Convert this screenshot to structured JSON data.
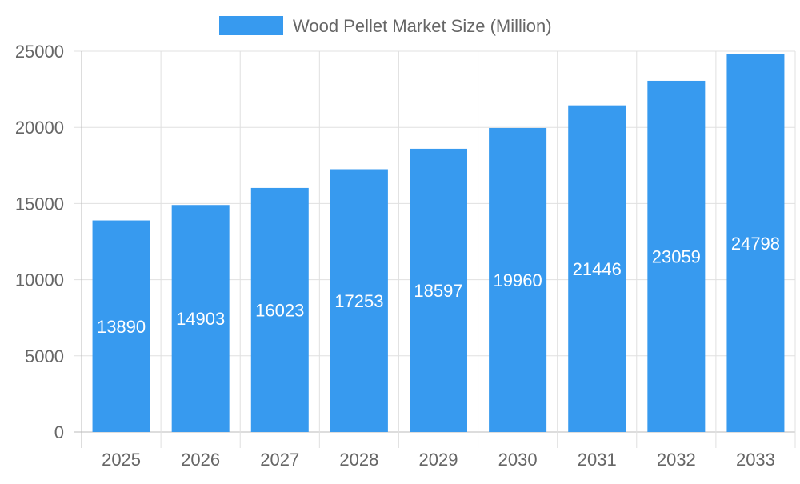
{
  "chart_data": {
    "type": "bar",
    "title": "",
    "xlabel": "",
    "ylabel": "",
    "categories": [
      "2025",
      "2026",
      "2027",
      "2028",
      "2029",
      "2030",
      "2031",
      "2032",
      "2033"
    ],
    "series": [
      {
        "name": "Wood Pellet Market Size (Million)",
        "values": [
          13890,
          14903,
          16023,
          17253,
          18597,
          19960,
          21446,
          23059,
          24798
        ],
        "color": "#379AEF"
      }
    ],
    "ylim": [
      0,
      25000
    ],
    "yticks": [
      0,
      5000,
      10000,
      15000,
      20000,
      25000
    ],
    "grid": true,
    "legend": "top-center",
    "data_labels": true
  }
}
